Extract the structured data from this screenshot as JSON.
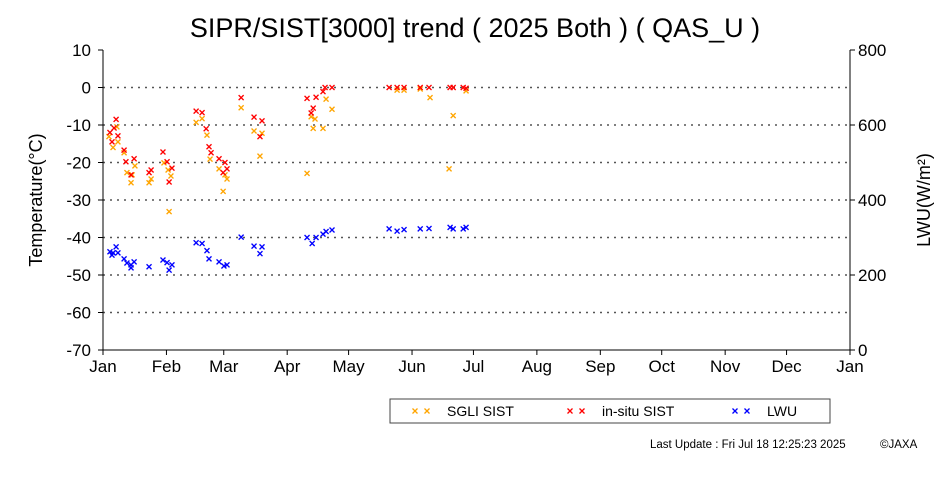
{
  "chart_data": {
    "type": "scatter",
    "title": "SIPR/SIST[3000] trend ( 2025 Both ) ( QAS_U )",
    "ylabel": "Temperature(°C)",
    "ylabel_right": "LWU(W/m²)",
    "ylim": [
      -70,
      10
    ],
    "ylim_right": [
      0,
      800
    ],
    "yticks": [
      "10",
      "0",
      "-10",
      "-20",
      "-30",
      "-40",
      "-50",
      "-60",
      "-70"
    ],
    "yticks_right": [
      "800",
      "600",
      "400",
      "200",
      "0"
    ],
    "xticks": [
      "Jan",
      "Feb",
      "Mar",
      "Apr",
      "May",
      "Jun",
      "Jul",
      "Aug",
      "Sep",
      "Oct",
      "Nov",
      "Dec",
      "Jan"
    ],
    "x_unit": "day of year 2025",
    "grid": "dotted horizontal",
    "legend_placement": "bottom",
    "series": [
      {
        "name": "SGLI SIST",
        "color": "#ffa500",
        "axis": "left",
        "points": [
          [
            2.9,
            -13.1
          ],
          [
            6.8,
            -10.5
          ],
          [
            4.9,
            -16
          ],
          [
            7.3,
            -14.5
          ],
          [
            10.3,
            -17.4
          ],
          [
            11.7,
            -22.7
          ],
          [
            14.2,
            -23.3
          ],
          [
            13.7,
            -25.4
          ],
          [
            15.6,
            -20.9
          ],
          [
            22.5,
            -25.4
          ],
          [
            23.5,
            -24.4
          ],
          [
            29.8,
            -20.1
          ],
          [
            31.8,
            -22
          ],
          [
            33.2,
            -23.6
          ],
          [
            32.3,
            -33.1
          ],
          [
            45.5,
            -9.3
          ],
          [
            48.4,
            -8.3
          ],
          [
            50.8,
            -12.7
          ],
          [
            52.3,
            -19.1
          ],
          [
            56.7,
            -21.7
          ],
          [
            59.6,
            -23.3
          ],
          [
            60.6,
            -24.4
          ],
          [
            58.7,
            -27.7
          ],
          [
            67.5,
            -5.4
          ],
          [
            73.8,
            -11.6
          ],
          [
            77.7,
            -12.2
          ],
          [
            76.7,
            -18.3
          ],
          [
            101.7,
            -7.8
          ],
          [
            103.6,
            -8.4
          ],
          [
            102.7,
            -10.9
          ],
          [
            107.5,
            -10.9
          ],
          [
            109,
            -3.1
          ],
          [
            111.9,
            -5.8
          ],
          [
            99.7,
            -22.9
          ],
          [
            143.7,
            -0.7
          ],
          [
            147.1,
            -0.7
          ],
          [
            155,
            -0.4
          ],
          [
            159.8,
            -2.7
          ],
          [
            171.1,
            -7.5
          ],
          [
            169.1,
            -21.7
          ],
          [
            177.4,
            -0.9
          ]
        ]
      },
      {
        "name": "in-situ SIST",
        "color": "#ff0000",
        "axis": "left",
        "points": [
          [
            6.4,
            -8.5
          ],
          [
            3.4,
            -12
          ],
          [
            5.4,
            -10.8
          ],
          [
            4.4,
            -14.5
          ],
          [
            7.3,
            -12.9
          ],
          [
            10.3,
            -16.7
          ],
          [
            11.2,
            -19.8
          ],
          [
            15.2,
            -19
          ],
          [
            13.7,
            -23.3
          ],
          [
            23.5,
            -22
          ],
          [
            22.5,
            -22.7
          ],
          [
            29.3,
            -17.2
          ],
          [
            31.3,
            -19.8
          ],
          [
            33.7,
            -21.5
          ],
          [
            32.3,
            -25.2
          ],
          [
            45.5,
            -6.3
          ],
          [
            48.4,
            -6.7
          ],
          [
            50.4,
            -11
          ],
          [
            51.8,
            -15.8
          ],
          [
            52.8,
            -17.4
          ],
          [
            56.7,
            -19
          ],
          [
            59.6,
            -20
          ],
          [
            60.6,
            -21.7
          ],
          [
            58.7,
            -22.7
          ],
          [
            67.5,
            -2.7
          ],
          [
            73.8,
            -7.9
          ],
          [
            77.7,
            -8.9
          ],
          [
            76.7,
            -13.1
          ],
          [
            99.7,
            -2.9
          ],
          [
            104.1,
            -2.6
          ],
          [
            102.7,
            -5.5
          ],
          [
            101.7,
            -6.8
          ],
          [
            107.5,
            -1.1
          ],
          [
            108.5,
            0
          ],
          [
            111.9,
            0
          ],
          [
            139.8,
            0
          ],
          [
            143.7,
            0
          ],
          [
            147.1,
            0
          ],
          [
            155,
            0
          ],
          [
            159.3,
            0
          ],
          [
            169.6,
            0
          ],
          [
            171.1,
            0
          ],
          [
            176,
            0
          ],
          [
            177.4,
            -0.2
          ]
        ]
      },
      {
        "name": "LWU",
        "color": "#0000ff",
        "axis": "right",
        "points": [
          [
            6.4,
            275
          ],
          [
            3.4,
            262
          ],
          [
            4.9,
            259
          ],
          [
            7.3,
            259
          ],
          [
            4.4,
            253
          ],
          [
            10.3,
            243
          ],
          [
            11.7,
            232
          ],
          [
            13.7,
            227
          ],
          [
            15.2,
            235
          ],
          [
            13.7,
            219
          ],
          [
            22.5,
            222
          ],
          [
            29.3,
            240
          ],
          [
            31.3,
            233
          ],
          [
            33.7,
            227
          ],
          [
            32.3,
            213
          ],
          [
            45.5,
            286
          ],
          [
            48.4,
            284
          ],
          [
            50.8,
            265
          ],
          [
            51.8,
            243
          ],
          [
            56.7,
            235
          ],
          [
            59.1,
            224
          ],
          [
            60.6,
            227
          ],
          [
            67.5,
            301
          ],
          [
            73.8,
            277
          ],
          [
            77.7,
            275
          ],
          [
            76.7,
            257
          ],
          [
            99.7,
            300
          ],
          [
            102.2,
            284
          ],
          [
            104.1,
            300
          ],
          [
            107.5,
            309
          ],
          [
            109,
            316
          ],
          [
            111.9,
            320
          ],
          [
            139.8,
            323
          ],
          [
            143.7,
            317
          ],
          [
            147.1,
            321
          ],
          [
            155,
            323
          ],
          [
            159.3,
            324
          ],
          [
            169.6,
            327
          ],
          [
            171.1,
            323
          ],
          [
            176,
            323
          ],
          [
            177.4,
            327
          ]
        ]
      }
    ]
  },
  "footer": {
    "last_update": "Last Update : Fri Jul 18 12:25:23 2025",
    "copyright": "©JAXA"
  }
}
